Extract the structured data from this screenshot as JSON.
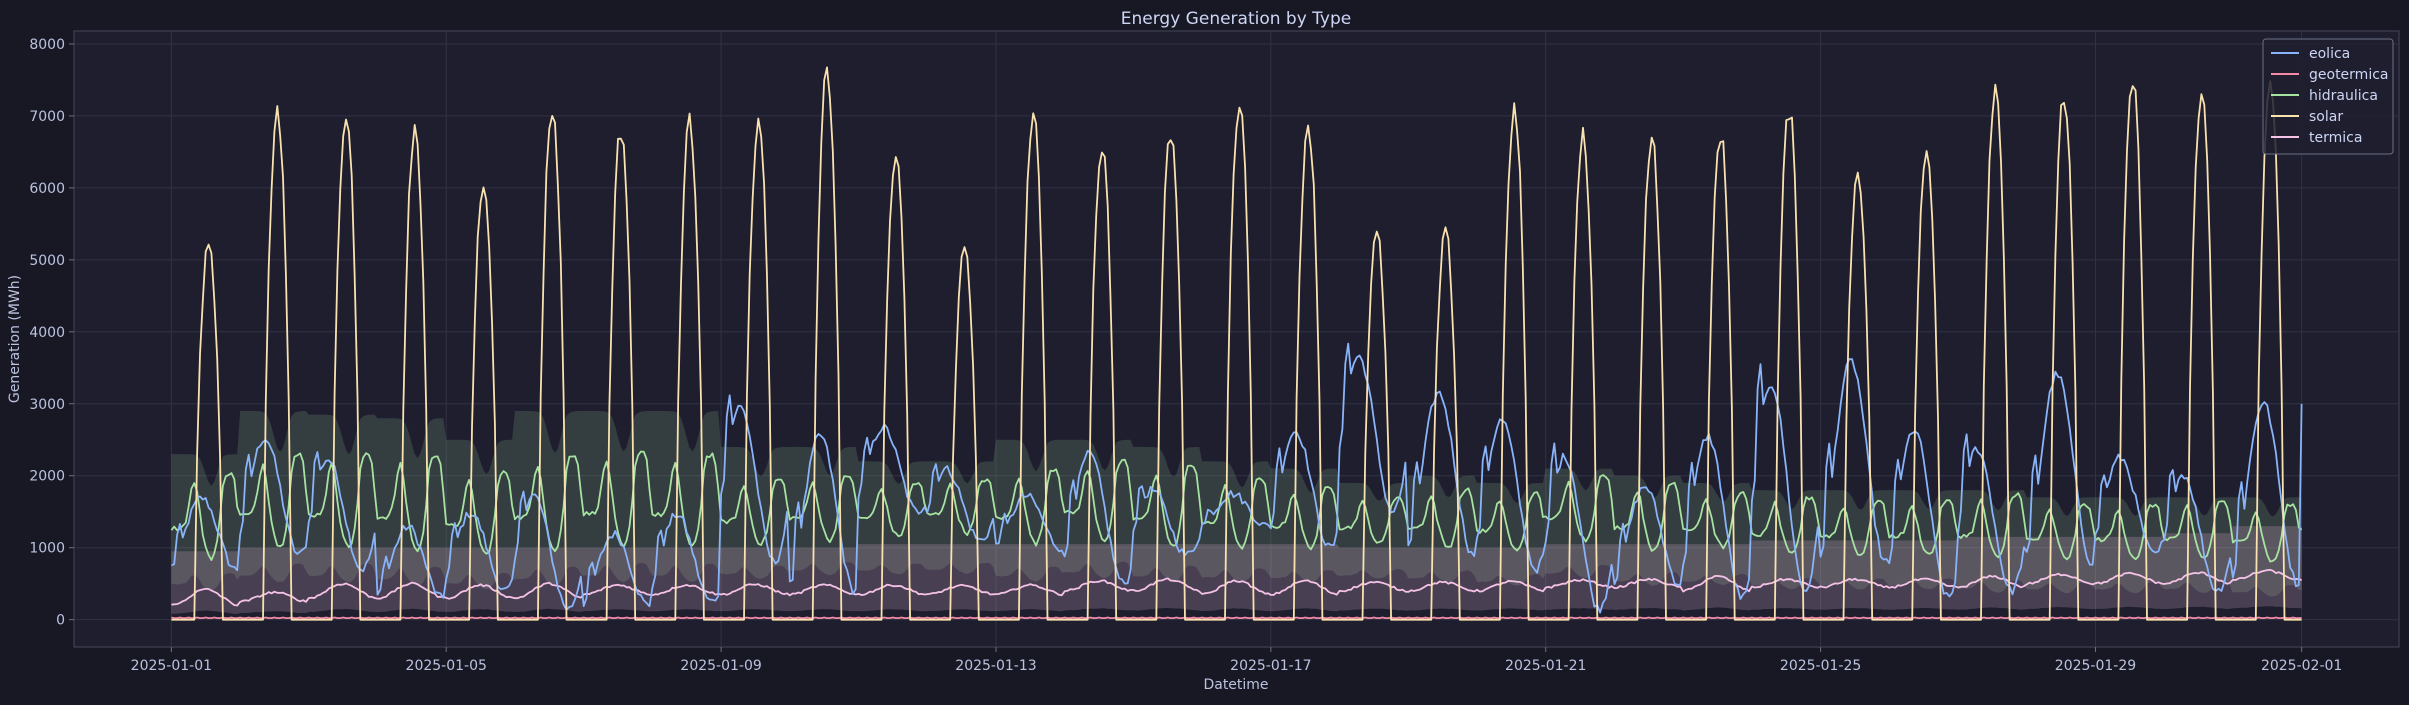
{
  "chart_data": {
    "type": "line",
    "title": "Energy Generation by Type",
    "xlabel": "Datetime",
    "ylabel": "Generation (MWh)",
    "xlim": [
      "2024-12-30T14:00",
      "2025-02-02T10:00"
    ],
    "ylim": [
      -380,
      8180
    ],
    "grid": true,
    "legend_position": "top-right",
    "x_ticks": [
      "2025-01-01",
      "2025-01-05",
      "2025-01-09",
      "2025-01-13",
      "2025-01-17",
      "2025-01-21",
      "2025-01-25",
      "2025-01-29",
      "2025-02-01"
    ],
    "y_ticks": [
      0,
      1000,
      2000,
      3000,
      4000,
      5000,
      6000,
      7000,
      8000
    ],
    "dates": [
      "2025-01-01",
      "2025-01-02",
      "2025-01-03",
      "2025-01-04",
      "2025-01-05",
      "2025-01-06",
      "2025-01-07",
      "2025-01-08",
      "2025-01-09",
      "2025-01-10",
      "2025-01-11",
      "2025-01-12",
      "2025-01-13",
      "2025-01-14",
      "2025-01-15",
      "2025-01-16",
      "2025-01-17",
      "2025-01-18",
      "2025-01-19",
      "2025-01-20",
      "2025-01-21",
      "2025-01-22",
      "2025-01-23",
      "2025-01-24",
      "2025-01-25",
      "2025-01-26",
      "2025-01-27",
      "2025-01-28",
      "2025-01-29",
      "2025-01-30",
      "2025-01-31"
    ],
    "series": [
      {
        "name": "eolica",
        "color": "#89b4fa",
        "daily_min": [
          700,
          900,
          700,
          300,
          400,
          150,
          200,
          250,
          800,
          400,
          1500,
          1100,
          1000,
          500,
          900,
          1300,
          1000,
          1500,
          900,
          700,
          150,
          500,
          300,
          400,
          800,
          300,
          400,
          800,
          900,
          400,
          500
        ],
        "daily_max": [
          1800,
          2700,
          2400,
          1400,
          1600,
          1900,
          1300,
          1600,
          3200,
          2800,
          2800,
          2200,
          1800,
          2500,
          1900,
          1800,
          2800,
          3900,
          3400,
          3000,
          2500,
          2000,
          2800,
          3600,
          3900,
          2900,
          2600,
          3700,
          2400,
          2200,
          3300
        ],
        "last_value": 3000
      },
      {
        "name": "geotermica",
        "color": "#f38ba8",
        "daily_min": [
          15,
          15,
          15,
          15,
          15,
          15,
          15,
          15,
          15,
          15,
          15,
          15,
          15,
          15,
          15,
          15,
          15,
          15,
          15,
          15,
          15,
          15,
          15,
          15,
          15,
          15,
          15,
          15,
          15,
          15,
          15
        ],
        "daily_max": [
          30,
          30,
          30,
          30,
          30,
          30,
          30,
          30,
          30,
          30,
          30,
          30,
          30,
          30,
          30,
          30,
          30,
          30,
          30,
          30,
          30,
          30,
          30,
          30,
          30,
          30,
          30,
          30,
          30,
          30,
          30
        ],
        "last_value": 25
      },
      {
        "name": "hidraulica",
        "color": "#a6e3a1",
        "daily_min": [
          850,
          1000,
          1000,
          950,
          900,
          950,
          1000,
          1000,
          1050,
          1100,
          1150,
          1200,
          1050,
          1100,
          1000,
          1000,
          1000,
          1050,
          1000,
          950,
          1100,
          950,
          1000,
          900,
          900,
          900,
          850,
          850,
          850,
          850,
          800
        ],
        "daily_max": [
          2050,
          2300,
          2300,
          2300,
          2050,
          2300,
          2350,
          2300,
          1950,
          2000,
          1900,
          1950,
          2100,
          2200,
          2150,
          1950,
          1850,
          1700,
          1800,
          1750,
          2000,
          1900,
          1750,
          1700,
          1650,
          1650,
          1750,
          1600,
          1600,
          1650,
          1600
        ],
        "band_low": [
          300,
          400,
          400,
          350,
          300,
          350,
          400,
          400,
          450,
          500,
          500,
          500,
          400,
          450,
          400,
          400,
          400,
          450,
          400,
          350,
          450,
          350,
          350,
          300,
          300,
          300,
          250,
          250,
          250,
          250,
          200
        ],
        "band_high": [
          2300,
          2900,
          2850,
          2800,
          2500,
          2900,
          2900,
          2900,
          2400,
          2400,
          2200,
          2200,
          2500,
          2500,
          2400,
          2200,
          2100,
          1900,
          2000,
          1900,
          2100,
          2000,
          1900,
          1800,
          1800,
          1800,
          1800,
          1700,
          1700,
          1700,
          1700
        ],
        "last_value": 1250
      },
      {
        "name": "solar",
        "color": "#f9e2af",
        "daily_min": [
          0,
          0,
          0,
          0,
          0,
          0,
          0,
          0,
          0,
          0,
          0,
          0,
          0,
          0,
          0,
          0,
          0,
          0,
          0,
          0,
          0,
          0,
          0,
          0,
          0,
          0,
          0,
          0,
          0,
          0,
          0
        ],
        "daily_max": [
          5350,
          7150,
          7200,
          6880,
          6230,
          7250,
          6950,
          7050,
          7050,
          7780,
          6570,
          5230,
          7150,
          6720,
          6900,
          7370,
          7050,
          5470,
          5490,
          7230,
          6850,
          6850,
          6900,
          7230,
          6380,
          6630,
          7560,
          7420,
          7640,
          7430,
          7610
        ],
        "last_value": 0
      },
      {
        "name": "termica",
        "color": "#f5c2e7",
        "daily_min": [
          200,
          250,
          300,
          300,
          300,
          300,
          350,
          350,
          350,
          350,
          350,
          350,
          350,
          400,
          400,
          350,
          350,
          400,
          400,
          400,
          450,
          450,
          400,
          450,
          450,
          450,
          450,
          500,
          500,
          500,
          550
        ],
        "daily_max": [
          420,
          380,
          500,
          500,
          480,
          500,
          480,
          480,
          490,
          480,
          480,
          470,
          480,
          540,
          560,
          540,
          540,
          520,
          520,
          530,
          550,
          560,
          600,
          560,
          560,
          560,
          600,
          630,
          640,
          650,
          680
        ],
        "band_low": [
          50,
          50,
          60,
          60,
          60,
          60,
          60,
          60,
          60,
          60,
          60,
          60,
          60,
          60,
          60,
          60,
          60,
          60,
          60,
          60,
          60,
          60,
          60,
          60,
          60,
          60,
          60,
          60,
          60,
          60,
          60
        ],
        "band_high": [
          950,
          1000,
          1000,
          1000,
          1000,
          1000,
          1000,
          1000,
          1000,
          1000,
          1050,
          1050,
          1050,
          1050,
          1050,
          1050,
          1050,
          1000,
          1000,
          1000,
          1050,
          1050,
          1050,
          1100,
          1100,
          1100,
          1150,
          1150,
          1150,
          1200,
          1300
        ],
        "last_value": 550
      }
    ]
  }
}
